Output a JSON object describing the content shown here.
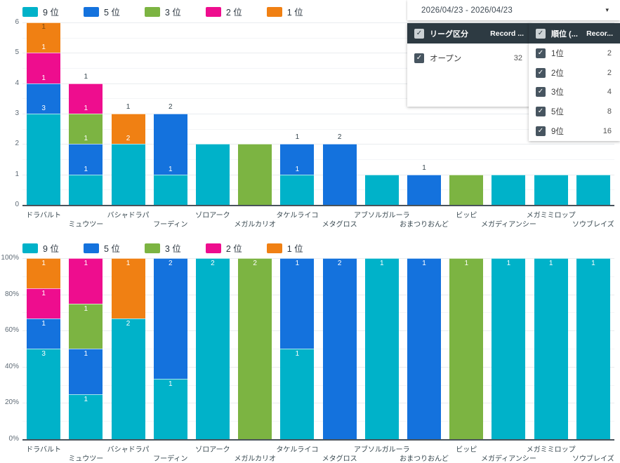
{
  "ui": {
    "check_glyph": "✓",
    "caret_glyph": "▾"
  },
  "colors": {
    "series": {
      "9位": "#00b2c9",
      "5位": "#1472dd",
      "3位": "#7cb442",
      "2位": "#ee0d8e",
      "1位": "#f08013"
    },
    "panel_header_bg": "#2d3a42",
    "axis_line": "#49535b"
  },
  "legend": [
    {
      "id": "9位",
      "label": "9 位",
      "color": "#00b2c9"
    },
    {
      "id": "5位",
      "label": "5 位",
      "color": "#1472dd"
    },
    {
      "id": "3位",
      "label": "3 位",
      "color": "#7cb442"
    },
    {
      "id": "2位",
      "label": "2 位",
      "color": "#ee0d8e"
    },
    {
      "id": "1位",
      "label": "1 位",
      "color": "#f08013"
    }
  ],
  "filters": {
    "date_range": {
      "value": "2026/04/23 - 2026/04/23"
    },
    "league_panel": {
      "header": {
        "label": "リーグ区分",
        "secondary": "Record ...",
        "checked": true
      },
      "rows": [
        {
          "label": "オープン",
          "count": "32",
          "checked": true
        }
      ]
    },
    "rank_panel": {
      "header": {
        "label": "順位 (...",
        "secondary": "Recor...",
        "checked": true
      },
      "rows": [
        {
          "label": "1位",
          "count": "2",
          "checked": true
        },
        {
          "label": "2位",
          "count": "2",
          "checked": true
        },
        {
          "label": "3位",
          "count": "4",
          "checked": true
        },
        {
          "label": "5位",
          "count": "8",
          "checked": true
        },
        {
          "label": "9位",
          "count": "16",
          "checked": true
        }
      ]
    }
  },
  "chart_data": [
    {
      "type": "bar",
      "stacked": true,
      "value_mode": "count",
      "title": "",
      "xlabel": "",
      "ylabel": "",
      "ylim": [
        0,
        6
      ],
      "yticks": [
        "0",
        "1",
        "2",
        "3",
        "4",
        "5",
        "6"
      ],
      "grid": "on",
      "legend_position": "top-left",
      "series_keys": [
        "9位",
        "5位",
        "3位",
        "2位",
        "1位"
      ],
      "bars": [
        {
          "category": "ドラバルト",
          "segments": [
            {
              "series": "9位",
              "value": 3,
              "label": "3",
              "label_pos": "edge"
            },
            {
              "series": "5位",
              "value": 1,
              "label": "1",
              "label_pos": "edge"
            },
            {
              "series": "2位",
              "value": 1,
              "label": "1",
              "label_pos": "edge"
            },
            {
              "series": "1位",
              "value": 1,
              "label": "1",
              "label_pos": "top-inside-dark"
            }
          ]
        },
        {
          "category": "ミュウツー",
          "segments": [
            {
              "series": "9位",
              "value": 1,
              "label": "1",
              "label_pos": "edge"
            },
            {
              "series": "5位",
              "value": 1,
              "label": "1",
              "label_pos": "edge"
            },
            {
              "series": "3位",
              "value": 1,
              "label": "1",
              "label_pos": "edge"
            },
            {
              "series": "2位",
              "value": 1,
              "label": "1",
              "label_pos": "above"
            }
          ]
        },
        {
          "category": "バシャドラパ",
          "segments": [
            {
              "series": "9位",
              "value": 2,
              "label": "2",
              "label_pos": "edge"
            },
            {
              "series": "1位",
              "value": 1,
              "label": "1",
              "label_pos": "above"
            }
          ]
        },
        {
          "category": "フーディン",
          "segments": [
            {
              "series": "9位",
              "value": 1,
              "label": "1",
              "label_pos": "edge"
            },
            {
              "series": "5位",
              "value": 2,
              "label": "2",
              "label_pos": "above"
            }
          ]
        },
        {
          "category": "ゾロアーク",
          "segments": [
            {
              "series": "9位",
              "value": 2,
              "label": null,
              "label_pos": null
            }
          ]
        },
        {
          "category": "メガルカリオ",
          "segments": [
            {
              "series": "3位",
              "value": 2,
              "label": null,
              "label_pos": null
            }
          ]
        },
        {
          "category": "タケルライコ",
          "segments": [
            {
              "series": "9位",
              "value": 1,
              "label": "1",
              "label_pos": "edge"
            },
            {
              "series": "5位",
              "value": 1,
              "label": "1",
              "label_pos": "above"
            }
          ]
        },
        {
          "category": "メタグロス",
          "segments": [
            {
              "series": "5位",
              "value": 2,
              "label": "2",
              "label_pos": "above"
            }
          ]
        },
        {
          "category": "アブソルガルーラ",
          "segments": [
            {
              "series": "9位",
              "value": 1,
              "label": null,
              "label_pos": null
            }
          ]
        },
        {
          "category": "おまつりおんど",
          "segments": [
            {
              "series": "5位",
              "value": 1,
              "label": "1",
              "label_pos": "above"
            }
          ]
        },
        {
          "category": "ビッピ",
          "segments": [
            {
              "series": "3位",
              "value": 1,
              "label": null,
              "label_pos": null
            }
          ]
        },
        {
          "category": "メガディアンシー",
          "segments": [
            {
              "series": "9位",
              "value": 1,
              "label": null,
              "label_pos": null
            }
          ]
        },
        {
          "category": "メガミミロップ",
          "segments": [
            {
              "series": "9位",
              "value": 1,
              "label": null,
              "label_pos": null
            }
          ]
        },
        {
          "category": "ソウブレイズ",
          "segments": [
            {
              "series": "9位",
              "value": 1,
              "label": null,
              "label_pos": null
            }
          ]
        }
      ]
    },
    {
      "type": "bar",
      "stacked": true,
      "value_mode": "percent",
      "title": "",
      "xlabel": "",
      "ylabel": "",
      "ylim": [
        0,
        100
      ],
      "yticks": [
        "0%",
        "20%",
        "40%",
        "60%",
        "80%",
        "100%"
      ],
      "grid": "on",
      "legend_position": "top-left",
      "series_keys": [
        "9位",
        "5位",
        "3位",
        "2位",
        "1位"
      ],
      "bars": [
        {
          "category": "ドラバルト",
          "segments": [
            {
              "series": "9位",
              "value": 3,
              "label": "3",
              "label_pos": "inside"
            },
            {
              "series": "5位",
              "value": 1,
              "label": "1",
              "label_pos": "inside"
            },
            {
              "series": "2位",
              "value": 1,
              "label": "1",
              "label_pos": "inside"
            },
            {
              "series": "1位",
              "value": 1,
              "label": "1",
              "label_pos": "inside"
            }
          ]
        },
        {
          "category": "ミュウツー",
          "segments": [
            {
              "series": "9位",
              "value": 1,
              "label": "1",
              "label_pos": "inside"
            },
            {
              "series": "5位",
              "value": 1,
              "label": "1",
              "label_pos": "inside"
            },
            {
              "series": "3位",
              "value": 1,
              "label": "1",
              "label_pos": "inside"
            },
            {
              "series": "2位",
              "value": 1,
              "label": "1",
              "label_pos": "inside"
            }
          ]
        },
        {
          "category": "バシャドラパ",
          "segments": [
            {
              "series": "9位",
              "value": 2,
              "label": "2",
              "label_pos": "inside"
            },
            {
              "series": "1位",
              "value": 1,
              "label": "1",
              "label_pos": "inside"
            }
          ]
        },
        {
          "category": "フーディン",
          "segments": [
            {
              "series": "9位",
              "value": 1,
              "label": "1",
              "label_pos": "inside"
            },
            {
              "series": "5位",
              "value": 2,
              "label": "2",
              "label_pos": "inside"
            }
          ]
        },
        {
          "category": "ゾロアーク",
          "segments": [
            {
              "series": "9位",
              "value": 2,
              "label": "2",
              "label_pos": "inside"
            }
          ]
        },
        {
          "category": "メガルカリオ",
          "segments": [
            {
              "series": "3位",
              "value": 2,
              "label": "2",
              "label_pos": "inside"
            }
          ]
        },
        {
          "category": "タケルライコ",
          "segments": [
            {
              "series": "9位",
              "value": 1,
              "label": "1",
              "label_pos": "inside"
            },
            {
              "series": "5位",
              "value": 1,
              "label": "1",
              "label_pos": "inside"
            }
          ]
        },
        {
          "category": "メタグロス",
          "segments": [
            {
              "series": "5位",
              "value": 2,
              "label": "2",
              "label_pos": "inside"
            }
          ]
        },
        {
          "category": "アブソルガルーラ",
          "segments": [
            {
              "series": "9位",
              "value": 1,
              "label": "1",
              "label_pos": "inside"
            }
          ]
        },
        {
          "category": "おまつりおんど",
          "segments": [
            {
              "series": "5位",
              "value": 1,
              "label": "1",
              "label_pos": "inside"
            }
          ]
        },
        {
          "category": "ビッピ",
          "segments": [
            {
              "series": "3位",
              "value": 1,
              "label": "1",
              "label_pos": "inside"
            }
          ]
        },
        {
          "category": "メガディアンシー",
          "segments": [
            {
              "series": "9位",
              "value": 1,
              "label": "1",
              "label_pos": "inside"
            }
          ]
        },
        {
          "category": "メガミミロップ",
          "segments": [
            {
              "series": "9位",
              "value": 1,
              "label": "1",
              "label_pos": "inside"
            }
          ]
        },
        {
          "category": "ソウブレイズ",
          "segments": [
            {
              "series": "9位",
              "value": 1,
              "label": "1",
              "label_pos": "inside"
            }
          ]
        }
      ]
    }
  ]
}
